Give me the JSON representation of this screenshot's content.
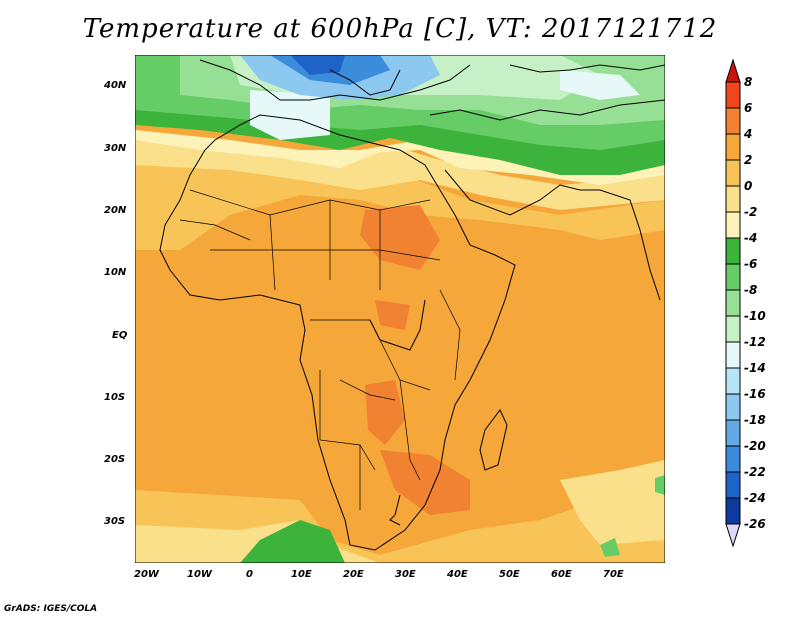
{
  "title": "Temperature at 600hPa [C], VT: 2017121712",
  "credit": "GrADS: IGES/COLA",
  "map": {
    "lat_labels": [
      "40N",
      "30N",
      "20N",
      "10N",
      "EQ",
      "10S",
      "20S",
      "30S"
    ],
    "lon_labels": [
      "20W",
      "10W",
      "0",
      "10E",
      "20E",
      "30E",
      "40E",
      "50E",
      "60E",
      "70E"
    ]
  },
  "colorbar": {
    "labels": [
      "8",
      "6",
      "4",
      "2",
      "0",
      "-2",
      "-4",
      "-6",
      "-8",
      "-10",
      "-12",
      "-14",
      "-16",
      "-18",
      "-20",
      "-22",
      "-24",
      "-26"
    ],
    "colors": [
      "#c8140a",
      "#f0461e",
      "#f08232",
      "#f5a73a",
      "#f9c457",
      "#fbe08b",
      "#fdf3b8",
      "#3cb43c",
      "#66cc66",
      "#96e096",
      "#c6f0c6",
      "#e6f8f8",
      "#b4e6f8",
      "#8cc8f0",
      "#64a8e6",
      "#3c8cdc",
      "#1e64c8",
      "#0a3ca0",
      "#081868"
    ]
  }
}
